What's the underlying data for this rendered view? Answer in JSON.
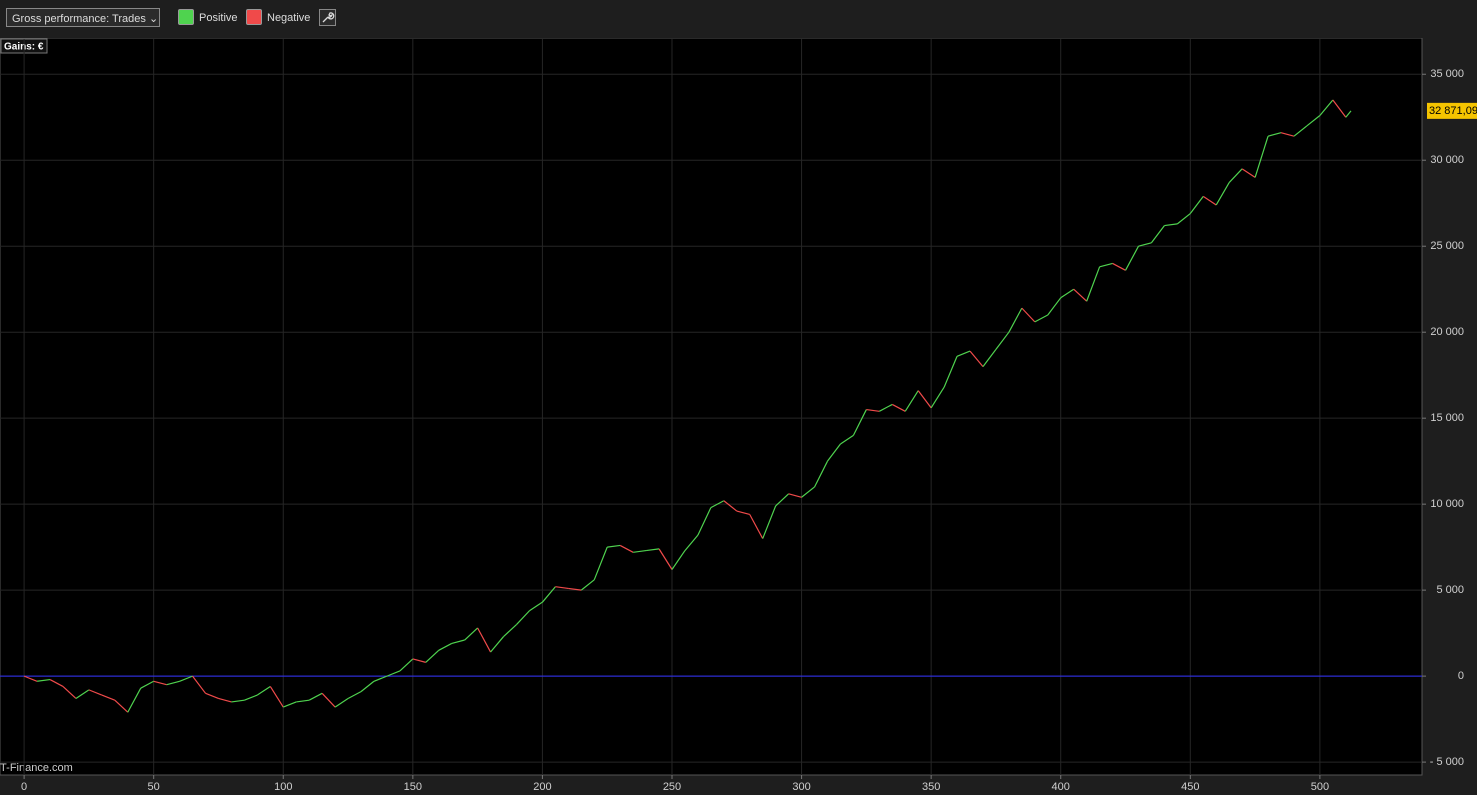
{
  "toolbar": {
    "selector": "Gross performance: Trades"
  },
  "chart_data": {
    "type": "line",
    "axis_label": "Gains: €",
    "watermark": "IT-Finance.com",
    "legend": [
      {
        "name": "Positive",
        "color": "#4fd34f"
      },
      {
        "name": "Negative",
        "color": "#f04a4a"
      }
    ],
    "zero_line_color": "#3030ff",
    "grid": true,
    "x": [
      0,
      5,
      10,
      15,
      20,
      25,
      30,
      35,
      40,
      45,
      50,
      55,
      60,
      65,
      70,
      75,
      80,
      85,
      90,
      95,
      100,
      105,
      110,
      115,
      120,
      125,
      130,
      135,
      140,
      145,
      150,
      155,
      160,
      165,
      170,
      175,
      180,
      185,
      190,
      195,
      200,
      205,
      210,
      215,
      220,
      225,
      230,
      235,
      240,
      245,
      250,
      255,
      260,
      265,
      270,
      275,
      280,
      285,
      290,
      295,
      300,
      305,
      310,
      315,
      320,
      325,
      330,
      335,
      340,
      345,
      350,
      355,
      360,
      365,
      370,
      375,
      380,
      385,
      390,
      395,
      400,
      405,
      410,
      415,
      420,
      425,
      430,
      435,
      440,
      445,
      450,
      455,
      460,
      465,
      470,
      475,
      480,
      485,
      490,
      495,
      500,
      505,
      510,
      512
    ],
    "values": [
      0,
      -300,
      -200,
      -600,
      -1300,
      -800,
      -1100,
      -1400,
      -2100,
      -700,
      -300,
      -500,
      -300,
      0,
      -1000,
      -1300,
      -1500,
      -1400,
      -1100,
      -600,
      -1800,
      -1500,
      -1400,
      -1000,
      -1800,
      -1300,
      -900,
      -300,
      0,
      300,
      1000,
      800,
      1500,
      1900,
      2100,
      2800,
      1400,
      2300,
      3000,
      3800,
      4300,
      5200,
      5100,
      5000,
      5600,
      7500,
      7600,
      7200,
      7300,
      7400,
      6200,
      7300,
      8200,
      9800,
      10200,
      9600,
      9400,
      8000,
      9900,
      10600,
      10400,
      11000,
      12500,
      13500,
      14000,
      15500,
      15400,
      15800,
      15400,
      16600,
      15600,
      16800,
      18600,
      18900,
      18000,
      19000,
      20000,
      21400,
      20600,
      21000,
      22000,
      22500,
      21800,
      23800,
      24000,
      23600,
      25000,
      25200,
      26200,
      26300,
      26900,
      27900,
      27400,
      28700,
      29500,
      29000,
      31400,
      31600,
      31400,
      32000,
      32600,
      33500,
      32500,
      32871.09
    ],
    "last_label": {
      "value": 32871.09,
      "label": "32 871,09"
    },
    "xlim": [
      -9.3,
      539.4
    ],
    "xticks": [
      0,
      50,
      100,
      150,
      200,
      250,
      300,
      350,
      400,
      450,
      500
    ],
    "ylim": [
      -5750,
      37050
    ],
    "yticks": [
      {
        "value": -5000,
        "label": "- 5 000"
      },
      0,
      {
        "value": 5000,
        "label": "5 000"
      },
      {
        "value": 10000,
        "label": "10 000"
      },
      {
        "value": 15000,
        "label": "15 000"
      },
      {
        "value": 20000,
        "label": "20 000"
      },
      {
        "value": 25000,
        "label": "25 000"
      },
      {
        "value": 30000,
        "label": "30 000"
      },
      {
        "value": 35000,
        "label": "35 000"
      }
    ]
  }
}
